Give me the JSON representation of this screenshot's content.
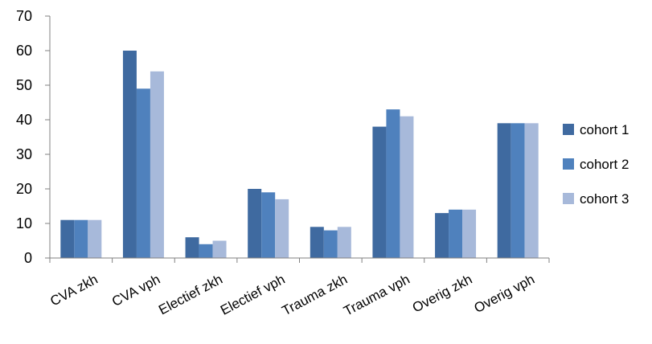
{
  "chart_data": {
    "type": "bar",
    "categories": [
      "CVA zkh",
      "CVA vph",
      "Electief zkh",
      "Electief vph",
      "Trauma zkh",
      "Trauma vph",
      "Overig zkh",
      "Overig vph"
    ],
    "series": [
      {
        "name": "cohort 1",
        "color": "#3F6AA0",
        "values": [
          11,
          60,
          6,
          20,
          9,
          38,
          13,
          39
        ]
      },
      {
        "name": "cohort 2",
        "color": "#4F81BD",
        "values": [
          11,
          49,
          4,
          19,
          8,
          43,
          14,
          39
        ]
      },
      {
        "name": "cohort 3",
        "color": "#A7B9DA",
        "values": [
          11,
          54,
          5,
          17,
          9,
          41,
          14,
          39
        ]
      }
    ],
    "ylim": [
      0,
      70
    ],
    "yticks": [
      0,
      10,
      20,
      30,
      40,
      50,
      60,
      70
    ],
    "title": "",
    "xlabel": "",
    "ylabel": "",
    "grid": false,
    "legend_position": "right"
  }
}
